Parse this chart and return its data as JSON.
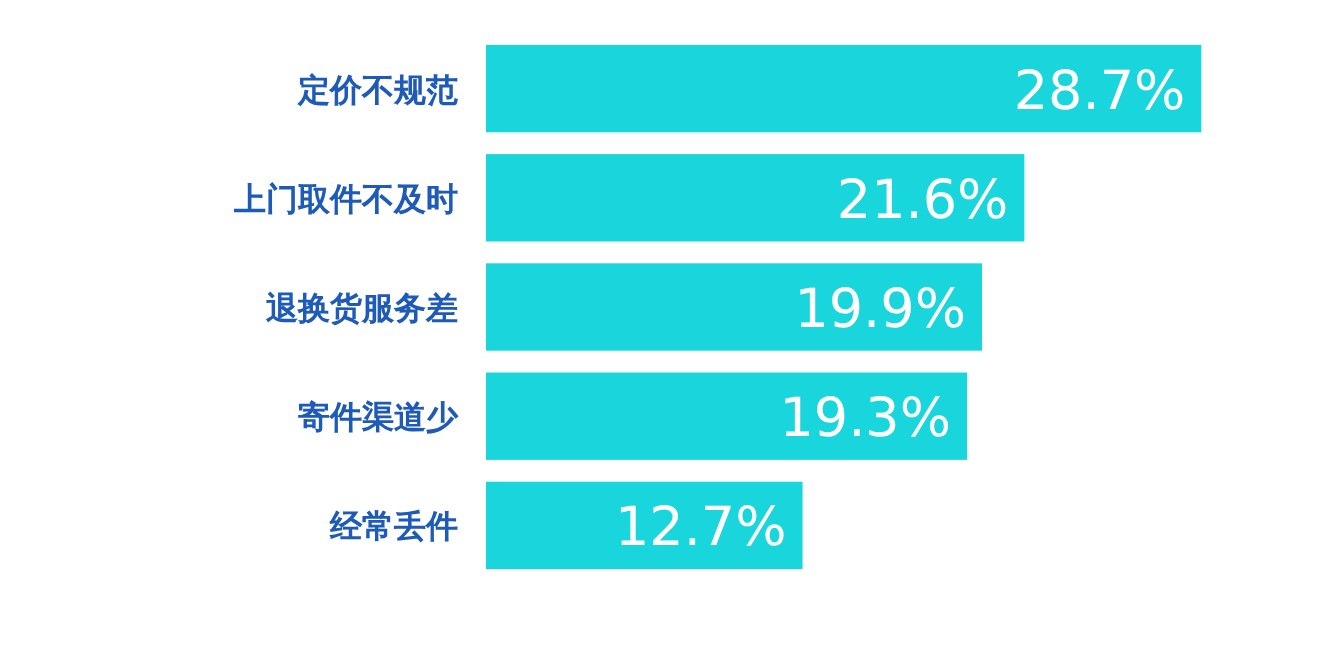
{
  "chart_data": {
    "type": "bar",
    "orientation": "horizontal",
    "categories": [
      "定价不规范",
      "上门取件不及时",
      "退换货服务差",
      "寄件渠道少",
      "经常丢件"
    ],
    "values": [
      28.7,
      21.6,
      19.9,
      19.3,
      12.7
    ],
    "value_labels": [
      "28.7%",
      "21.6%",
      "19.9%",
      "19.3%",
      "12.7%"
    ],
    "color": "#19d6dc",
    "tick_labels": "y"
  }
}
